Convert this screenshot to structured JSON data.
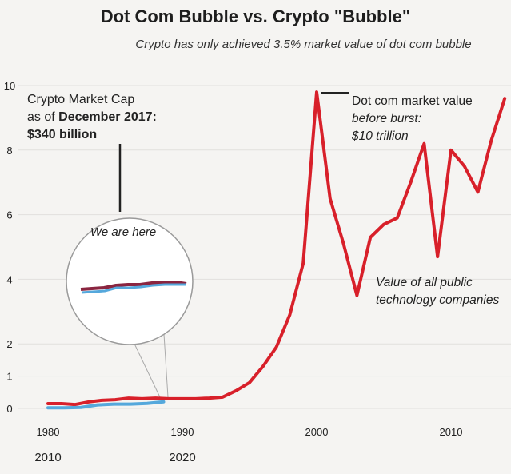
{
  "title": "Dot Com Bubble vs. Crypto \"Bubble\"",
  "subtitle": "Crypto has only achieved 3.5% market value of dot com bubble",
  "annotations": {
    "crypto_line1": "Crypto Market Cap",
    "crypto_line2_prefix": "as of ",
    "crypto_line2_bold": "December 2017:",
    "crypto_line3": "$340 billion",
    "we_are_here": "We are here",
    "dotcom_line1": "Dot com market value",
    "dotcom_line2": "before burst:",
    "dotcom_line3": "$10 trillion",
    "tech_line1": "Value of all public",
    "tech_line2": "technology companies"
  },
  "colors": {
    "dotcom": "#d8202a",
    "crypto": "#55a8dc",
    "crypto_shadow": "#8a2540",
    "grid": "#e1e0dd",
    "callout": "#222222"
  },
  "chart_data": {
    "type": "line",
    "title": "Dot Com Bubble vs. Crypto \"Bubble\"",
    "subtitle": "Crypto has only achieved 3.5% market value of dot com bubble",
    "xlabel": "",
    "ylabel": "",
    "xlim": [
      1980,
      2017
    ],
    "ylim": [
      0,
      10
    ],
    "x_ticks_primary": [
      "1980",
      "1990",
      "2000",
      "2010"
    ],
    "x_ticks_secondary": [
      "2010",
      "2020"
    ],
    "y_ticks": [
      "0",
      "1",
      "2",
      "4",
      "6",
      "8",
      "10"
    ],
    "grid": true,
    "series": [
      {
        "name": "Value of all public technology companies",
        "x": [
          1980,
          1981,
          1982,
          1983,
          1984,
          1985,
          1986,
          1987,
          1988,
          1989,
          1990,
          1991,
          1992,
          1993,
          1994,
          1995,
          1996,
          1997,
          1998,
          1999,
          2000,
          2001,
          2002,
          2003,
          2004,
          2005,
          2006,
          2007,
          2008,
          2009,
          2010,
          2011,
          2012,
          2013,
          2014
        ],
        "y": [
          0.15,
          0.15,
          0.12,
          0.2,
          0.25,
          0.27,
          0.32,
          0.3,
          0.32,
          0.3,
          0.3,
          0.3,
          0.32,
          0.35,
          0.55,
          0.8,
          1.3,
          1.9,
          2.9,
          4.5,
          9.8,
          6.5,
          5.1,
          3.5,
          5.3,
          5.7,
          5.9,
          7.0,
          8.2,
          4.7,
          8.0,
          7.5,
          6.7,
          8.3,
          9.6
        ]
      },
      {
        "name": "Crypto Market Cap",
        "x": [
          2010,
          2011,
          2012,
          2013,
          2014,
          2015,
          2016,
          2017
        ],
        "y": [
          0.03,
          0.03,
          0.05,
          0.18,
          0.22,
          0.22,
          0.26,
          0.34
        ]
      }
    ],
    "annotations": [
      {
        "text": "Crypto Market Cap as of December 2017: $340 billion"
      },
      {
        "text": "We are here"
      },
      {
        "text": "Dot com market value before burst: $10 trillion"
      },
      {
        "text": "Value of all public technology companies"
      }
    ]
  }
}
